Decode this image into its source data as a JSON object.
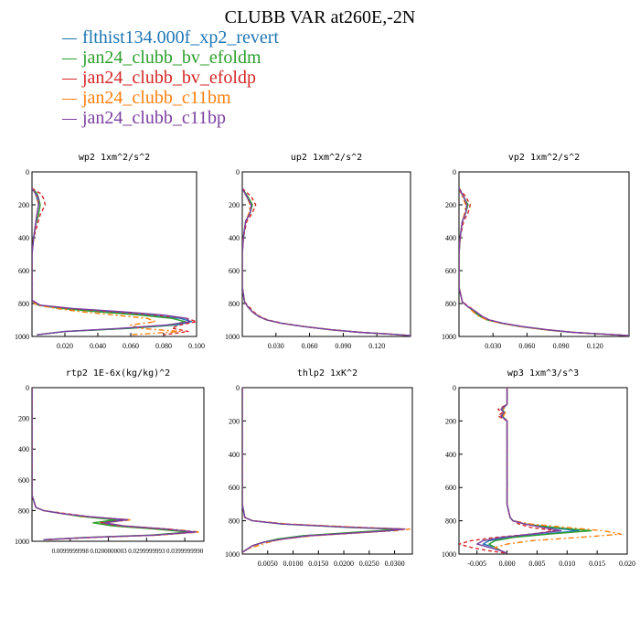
{
  "title": "CLUBB VAR at260E,-2N",
  "legend": [
    {
      "name": "flthist134.000f_xp2_revert",
      "color": "#1f77b4",
      "dash": "solid"
    },
    {
      "name": "jan24_clubb_bv_efoldm",
      "color": "#2ca02c",
      "dash": "solid"
    },
    {
      "name": "jan24_clubb_bv_efoldp",
      "color": "#d62728",
      "dash": "dashed"
    },
    {
      "name": "jan24_clubb_c11bm",
      "color": "#ff7f0e",
      "dash": "dashdot"
    },
    {
      "name": "jan24_clubb_c11bp",
      "color": "#7b3fa0",
      "dash": "solid"
    }
  ],
  "chart_data": [
    {
      "type": "line",
      "title": "wp2  1xm^2/s^2",
      "xlim": [
        0,
        0.1
      ],
      "ylim": [
        1000,
        0
      ],
      "xticks": [
        0.02,
        0.04,
        0.06,
        0.08,
        0.1
      ],
      "xtick_labels": [
        "0.020",
        "0.040",
        "0.060",
        "0.080",
        "0.100"
      ],
      "yticks": [
        0,
        200,
        400,
        600,
        800,
        1000
      ],
      "ytick_labels": [
        "0",
        "200",
        "400",
        "600",
        "800",
        "1000"
      ],
      "y": [
        100,
        130,
        160,
        200,
        260,
        330,
        400,
        500,
        600,
        700,
        780,
        810,
        830,
        850,
        870,
        890,
        910,
        930,
        950,
        970,
        990
      ],
      "series": [
        {
          "x": [
            0.0,
            0.002,
            0.003,
            0.004,
            0.003,
            0.002,
            0.001,
            0.0,
            0.0,
            0.0,
            0.0,
            0.004,
            0.02,
            0.045,
            0.07,
            0.09,
            0.097,
            0.088,
            0.06,
            0.02,
            0.003
          ]
        },
        {
          "x": [
            0.0,
            0.003,
            0.004,
            0.005,
            0.004,
            0.002,
            0.001,
            0.0,
            0.0,
            0.0,
            0.0,
            0.004,
            0.018,
            0.04,
            0.065,
            0.085,
            0.093,
            0.085,
            0.06,
            0.02,
            0.003
          ]
        },
        {
          "x": [
            0.0,
            0.005,
            0.007,
            0.008,
            0.005,
            0.003,
            0.001,
            0.0,
            0.0,
            0.0,
            0.0,
            0.005,
            0.022,
            0.05,
            0.075,
            0.094,
            0.1,
            0.09,
            0.085,
            0.095,
            0.08
          ]
        },
        {
          "x": [
            0.0,
            0.002,
            0.003,
            0.004,
            0.003,
            0.002,
            0.001,
            0.0,
            0.0,
            0.0,
            0.0,
            0.003,
            0.015,
            0.03,
            0.05,
            0.07,
            0.075,
            0.06,
            0.065,
            0.09,
            0.06
          ]
        },
        {
          "x": [
            0.0,
            0.002,
            0.004,
            0.004,
            0.003,
            0.002,
            0.001,
            0.0,
            0.0,
            0.0,
            0.0,
            0.005,
            0.025,
            0.055,
            0.08,
            0.094,
            0.096,
            0.082,
            0.055,
            0.02,
            0.003
          ]
        }
      ]
    },
    {
      "type": "line",
      "title": "up2  1xm^2/s^2",
      "xlim": [
        0,
        0.15
      ],
      "ylim": [
        1000,
        0
      ],
      "xticks": [
        0.03,
        0.06,
        0.09,
        0.12
      ],
      "xtick_labels": [
        "0.030",
        "0.060",
        "0.090",
        "0.120"
      ],
      "yticks": [
        0,
        200,
        400,
        600,
        800,
        1000
      ],
      "ytick_labels": [
        "0",
        "200",
        "400",
        "600",
        "800",
        "1000"
      ],
      "y": [
        100,
        150,
        200,
        250,
        300,
        400,
        500,
        600,
        700,
        790,
        820,
        850,
        880,
        900,
        920,
        940,
        960,
        975,
        985,
        995
      ],
      "series": [
        {
          "x": [
            0.0,
            0.004,
            0.008,
            0.007,
            0.003,
            0.001,
            0.0,
            0.0,
            0.0,
            0.002,
            0.005,
            0.009,
            0.015,
            0.022,
            0.035,
            0.055,
            0.08,
            0.105,
            0.13,
            0.15
          ]
        },
        {
          "x": [
            0.0,
            0.005,
            0.009,
            0.007,
            0.003,
            0.001,
            0.0,
            0.0,
            0.0,
            0.002,
            0.005,
            0.009,
            0.015,
            0.022,
            0.035,
            0.055,
            0.08,
            0.105,
            0.13,
            0.15
          ]
        },
        {
          "x": [
            0.0,
            0.008,
            0.012,
            0.009,
            0.004,
            0.001,
            0.0,
            0.0,
            0.0,
            0.002,
            0.006,
            0.01,
            0.016,
            0.023,
            0.036,
            0.056,
            0.081,
            0.106,
            0.131,
            0.15
          ]
        },
        {
          "x": [
            0.0,
            0.004,
            0.007,
            0.006,
            0.003,
            0.001,
            0.0,
            0.0,
            0.0,
            0.002,
            0.005,
            0.009,
            0.015,
            0.022,
            0.035,
            0.055,
            0.08,
            0.105,
            0.13,
            0.15
          ]
        },
        {
          "x": [
            0.0,
            0.004,
            0.008,
            0.007,
            0.003,
            0.001,
            0.0,
            0.0,
            0.0,
            0.002,
            0.005,
            0.009,
            0.015,
            0.022,
            0.035,
            0.055,
            0.08,
            0.105,
            0.13,
            0.15
          ]
        }
      ]
    },
    {
      "type": "line",
      "title": "vp2  1xm^2/s^2",
      "xlim": [
        0,
        0.15
      ],
      "ylim": [
        1000,
        0
      ],
      "xticks": [
        0.03,
        0.06,
        0.09,
        0.12
      ],
      "xtick_labels": [
        "0.030",
        "0.060",
        "0.090",
        "0.120"
      ],
      "yticks": [
        0,
        200,
        400,
        600,
        800,
        1000
      ],
      "ytick_labels": [
        "0",
        "200",
        "400",
        "600",
        "800",
        "1000"
      ],
      "y": [
        100,
        150,
        200,
        250,
        300,
        400,
        500,
        600,
        700,
        790,
        820,
        840,
        860,
        880,
        900,
        920,
        940,
        960,
        975,
        985,
        995
      ],
      "series": [
        {
          "x": [
            0.0,
            0.004,
            0.007,
            0.006,
            0.003,
            0.001,
            0.0,
            0.0,
            0.0,
            0.003,
            0.008,
            0.012,
            0.016,
            0.02,
            0.026,
            0.038,
            0.055,
            0.078,
            0.1,
            0.125,
            0.15
          ]
        },
        {
          "x": [
            0.0,
            0.004,
            0.008,
            0.006,
            0.003,
            0.001,
            0.0,
            0.0,
            0.0,
            0.003,
            0.008,
            0.012,
            0.015,
            0.019,
            0.025,
            0.037,
            0.054,
            0.077,
            0.1,
            0.125,
            0.15
          ]
        },
        {
          "x": [
            0.0,
            0.006,
            0.01,
            0.008,
            0.004,
            0.001,
            0.0,
            0.0,
            0.0,
            0.003,
            0.009,
            0.013,
            0.017,
            0.021,
            0.027,
            0.039,
            0.056,
            0.079,
            0.101,
            0.126,
            0.15
          ]
        },
        {
          "x": [
            0.0,
            0.003,
            0.006,
            0.005,
            0.003,
            0.001,
            0.0,
            0.0,
            0.0,
            0.003,
            0.008,
            0.011,
            0.014,
            0.018,
            0.025,
            0.037,
            0.054,
            0.077,
            0.1,
            0.125,
            0.15
          ]
        },
        {
          "x": [
            0.0,
            0.004,
            0.007,
            0.006,
            0.003,
            0.001,
            0.0,
            0.0,
            0.0,
            0.003,
            0.008,
            0.013,
            0.017,
            0.021,
            0.027,
            0.039,
            0.056,
            0.079,
            0.101,
            0.126,
            0.15
          ]
        }
      ]
    },
    {
      "type": "line",
      "title": "rtp2  1E-6x(kg/kg)^2",
      "xlim": [
        0,
        0.045
      ],
      "ylim": [
        1000,
        0
      ],
      "xticks": [
        0.01,
        0.02,
        0.03,
        0.04
      ],
      "xtick_labels": [
        "0.0099999998",
        "0.0200000003",
        "0.0299999993",
        "0.0399999990"
      ],
      "yticks": [
        0,
        200,
        400,
        600,
        800,
        1000
      ],
      "ytick_labels": [
        "0",
        "200",
        "400",
        "600",
        "800",
        "1000"
      ],
      "y": [
        0,
        200,
        400,
        600,
        700,
        780,
        800,
        820,
        840,
        860,
        880,
        900,
        920,
        940,
        960,
        975,
        990
      ],
      "series": [
        {
          "x": [
            0.0,
            0.0,
            0.0,
            0.0,
            0.0,
            0.001,
            0.003,
            0.008,
            0.014,
            0.024,
            0.018,
            0.022,
            0.033,
            0.042,
            0.032,
            0.015,
            0.003
          ]
        },
        {
          "x": [
            0.0,
            0.0,
            0.0,
            0.0,
            0.0,
            0.001,
            0.003,
            0.008,
            0.013,
            0.022,
            0.016,
            0.021,
            0.032,
            0.041,
            0.031,
            0.014,
            0.003
          ]
        },
        {
          "x": [
            0.0,
            0.0,
            0.0,
            0.0,
            0.0,
            0.001,
            0.003,
            0.009,
            0.015,
            0.025,
            0.018,
            0.023,
            0.034,
            0.043,
            0.033,
            0.016,
            0.004
          ]
        },
        {
          "x": [
            0.0,
            0.0,
            0.0,
            0.0,
            0.0,
            0.001,
            0.003,
            0.008,
            0.014,
            0.026,
            0.019,
            0.024,
            0.036,
            0.044,
            0.033,
            0.015,
            0.004
          ]
        },
        {
          "x": [
            0.0,
            0.0,
            0.0,
            0.0,
            0.0,
            0.001,
            0.003,
            0.008,
            0.015,
            0.025,
            0.019,
            0.024,
            0.035,
            0.043,
            0.032,
            0.015,
            0.003
          ]
        }
      ]
    },
    {
      "type": "line",
      "title": "thlp2  1xK^2",
      "xlim": [
        0,
        0.0335
      ],
      "ylim": [
        1000,
        0
      ],
      "xticks": [
        0.005,
        0.01,
        0.015,
        0.02,
        0.025,
        0.03
      ],
      "xtick_labels": [
        "0.0050",
        "0.0100",
        "0.0150",
        "0.0200",
        "0.0250",
        "0.0300"
      ],
      "yticks": [
        0,
        200,
        400,
        600,
        800,
        1000
      ],
      "ytick_labels": [
        "0",
        "200",
        "400",
        "600",
        "800",
        "1000"
      ],
      "y": [
        0,
        200,
        400,
        600,
        700,
        780,
        800,
        820,
        840,
        850,
        860,
        875,
        890,
        910,
        930,
        950,
        970,
        990
      ],
      "series": [
        {
          "x": [
            0.0,
            0.0,
            0.0,
            0.0,
            0.0,
            0.0005,
            0.002,
            0.008,
            0.022,
            0.031,
            0.028,
            0.02,
            0.012,
            0.007,
            0.004,
            0.002,
            0.001,
            0.0
          ]
        },
        {
          "x": [
            0.0,
            0.0,
            0.0,
            0.0,
            0.0,
            0.0005,
            0.002,
            0.008,
            0.021,
            0.03,
            0.027,
            0.019,
            0.012,
            0.007,
            0.004,
            0.002,
            0.001,
            0.0
          ]
        },
        {
          "x": [
            0.0,
            0.0,
            0.0,
            0.0,
            0.0,
            0.0005,
            0.002,
            0.009,
            0.023,
            0.032,
            0.029,
            0.021,
            0.013,
            0.008,
            0.004,
            0.002,
            0.001,
            0.0
          ]
        },
        {
          "x": [
            0.0,
            0.0,
            0.0,
            0.0,
            0.0,
            0.0005,
            0.002,
            0.009,
            0.024,
            0.033,
            0.03,
            0.022,
            0.014,
            0.008,
            0.005,
            0.003,
            0.001,
            0.0
          ]
        },
        {
          "x": [
            0.0,
            0.0,
            0.0,
            0.0,
            0.0,
            0.0005,
            0.002,
            0.008,
            0.022,
            0.032,
            0.029,
            0.021,
            0.013,
            0.008,
            0.004,
            0.002,
            0.001,
            0.0
          ]
        }
      ]
    },
    {
      "type": "line",
      "title": "wp3  1xm^3/s^3",
      "xlim": [
        -0.008,
        0.02
      ],
      "ylim": [
        1000,
        0
      ],
      "xticks": [
        -0.005,
        0.0,
        0.005,
        0.01,
        0.015,
        0.02
      ],
      "xtick_labels": [
        "-0.005",
        "0.000",
        "0.005",
        "0.010",
        "0.015",
        "0.020"
      ],
      "yticks": [
        0,
        200,
        400,
        600,
        800,
        1000
      ],
      "ytick_labels": [
        "0",
        "200",
        "400",
        "600",
        "800",
        "1000"
      ],
      "y": [
        0,
        100,
        130,
        150,
        170,
        200,
        300,
        500,
        700,
        780,
        800,
        820,
        840,
        860,
        880,
        900,
        920,
        940,
        960,
        980,
        995
      ],
      "series": [
        {
          "x": [
            0.0,
            0.0,
            -0.001,
            -0.0005,
            -0.001,
            0.0,
            0.0,
            0.0,
            0.0,
            0.0005,
            0.001,
            0.003,
            0.007,
            0.012,
            0.006,
            0.0,
            -0.003,
            -0.004,
            -0.002,
            -0.001,
            0.0
          ]
        },
        {
          "x": [
            0.0,
            0.0,
            -0.0008,
            -0.0004,
            -0.0008,
            0.0,
            0.0,
            0.0,
            0.0,
            0.0005,
            0.001,
            0.003,
            0.008,
            0.014,
            0.007,
            0.001,
            -0.002,
            -0.003,
            -0.002,
            -0.001,
            0.0
          ]
        },
        {
          "x": [
            0.0,
            0.0,
            -0.0015,
            -0.0008,
            -0.0015,
            0.0,
            0.0,
            0.0,
            0.0,
            0.0005,
            0.001,
            0.002,
            0.004,
            0.008,
            0.004,
            -0.002,
            -0.006,
            -0.008,
            -0.006,
            -0.003,
            0.0
          ]
        },
        {
          "x": [
            0.0,
            0.0,
            -0.0006,
            -0.0003,
            -0.0006,
            0.0,
            0.0,
            0.0,
            0.0,
            0.0005,
            0.001,
            0.004,
            0.01,
            0.016,
            0.019,
            0.012,
            0.004,
            0.0,
            -0.002,
            -0.001,
            0.0
          ]
        },
        {
          "x": [
            0.0,
            0.0,
            -0.001,
            -0.0005,
            -0.001,
            0.0,
            0.0,
            0.0,
            0.0,
            0.0005,
            0.001,
            0.003,
            0.006,
            0.009,
            0.004,
            -0.001,
            -0.004,
            -0.005,
            -0.003,
            -0.001,
            0.0
          ]
        }
      ]
    }
  ]
}
